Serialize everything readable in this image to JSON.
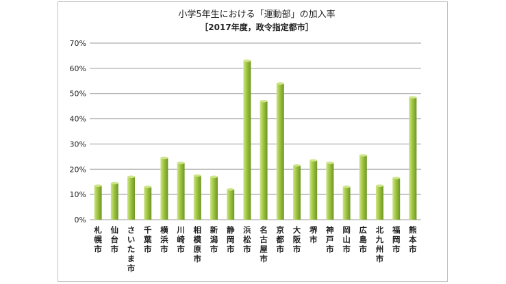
{
  "chart_data": {
    "type": "bar",
    "title": "小学5年生における「運動部」の加入率",
    "subtitle": "［2017年度，政令指定都市］",
    "xlabel": "",
    "ylabel": "",
    "ylim": [
      0,
      70
    ],
    "yticks": [
      0,
      10,
      20,
      30,
      40,
      50,
      60,
      70
    ],
    "ytick_labels": [
      "0%",
      "10%",
      "20%",
      "30%",
      "40%",
      "50%",
      "60%",
      "70%"
    ],
    "grid": true,
    "legend": "none",
    "categories": [
      "札幌市",
      "仙台市",
      "さいたま市",
      "千葉市",
      "横浜市",
      "川崎市",
      "相模原市",
      "新潟市",
      "静岡市",
      "浜松市",
      "名古屋市",
      "京都市",
      "大阪市",
      "堺市",
      "神戸市",
      "岡山市",
      "広島市",
      "北九州市",
      "福岡市",
      "熊本市"
    ],
    "values": [
      13.5,
      14.5,
      17,
      13,
      24.5,
      22.5,
      17.5,
      17,
      12,
      63,
      47,
      54,
      21.5,
      23.5,
      22.5,
      13,
      25.5,
      13.5,
      16.5,
      48.5
    ],
    "colors": {
      "bar_light": "#cfe58a",
      "bar_mid": "#9ec53f",
      "bar_dark": "#6f9626",
      "grid": "#9a9a9a"
    }
  }
}
